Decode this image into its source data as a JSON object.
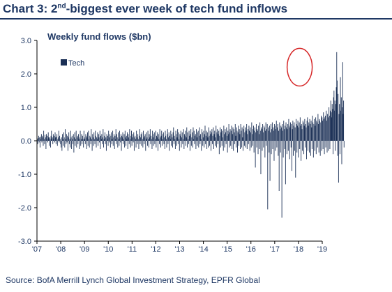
{
  "header": {
    "title_prefix": "Chart 3: 2",
    "title_sup": "nd",
    "title_suffix": "-biggest ever week of tech fund inflows"
  },
  "source": "Source:  BofA Merrill Lynch Global Investment Strategy, EPFR Global",
  "colors": {
    "bar": "#1a2f55",
    "highlight": "#d62728",
    "text": "#1f3864",
    "title": "#1f3864",
    "axis": "#000000"
  },
  "chart_data": {
    "type": "bar",
    "subtitle": "Weekly fund flows ($bn)",
    "ylabel": "",
    "xlabel": "",
    "ylim": [
      -3.0,
      3.0
    ],
    "yticks": [
      "3.0",
      "2.0",
      "1.0",
      "0.0",
      "-1.0",
      "-2.0",
      "-3.0"
    ],
    "ytick_values": [
      3,
      2,
      1,
      0,
      -1,
      -2,
      -3
    ],
    "xticks": [
      "'07",
      "'08",
      "'09",
      "'10",
      "'11",
      "'12",
      "'13",
      "'14",
      "'15",
      "'16",
      "'17",
      "'18",
      "'19"
    ],
    "xtick_years": [
      2007,
      2008,
      2009,
      2010,
      2011,
      2012,
      2013,
      2014,
      2015,
      2016,
      2017,
      2018,
      2019
    ],
    "x_range_years": [
      2007,
      2019
    ],
    "grid": false,
    "legend": {
      "placement": "top-left"
    },
    "series": [
      {
        "name": "Tech",
        "weeks_per_year": 52,
        "start_year": 2007,
        "values": [
          0.05,
          -0.1,
          0.08,
          0.15,
          -0.05,
          0.1,
          -0.2,
          0.12,
          0.05,
          0.2,
          -0.05,
          0.15,
          0.1,
          -0.15,
          0.3,
          0.05,
          -0.1,
          0.18,
          0.1,
          -0.25,
          0.2,
          0.05,
          0.15,
          -0.05,
          0.25,
          0.1,
          -0.15,
          0.1,
          0.05,
          -0.2,
          0.15,
          0.3,
          0.05,
          0.1,
          -0.1,
          0.2,
          0.05,
          0.15,
          -0.05,
          0.25,
          0.1,
          -0.1,
          0.12,
          0.2,
          -0.15,
          0.05,
          0.1,
          0.3,
          -0.05,
          0.15,
          0.05,
          -0.1,
          -0.2,
          0.1,
          -0.3,
          0.2,
          0.05,
          -0.15,
          0.25,
          0.1,
          -0.2,
          0.35,
          0.05,
          -0.1,
          0.2,
          -0.05,
          0.15,
          -0.3,
          0.1,
          0.25,
          -0.1,
          0.05,
          -0.2,
          0.3,
          0.1,
          -0.25,
          0.15,
          0.05,
          -0.1,
          0.2,
          -0.35,
          0.1,
          0.25,
          -0.15,
          0.05,
          0.3,
          -0.2,
          0.1,
          0.15,
          -0.1,
          0.2,
          0.05,
          -0.25,
          0.1,
          0.3,
          -0.15,
          0.05,
          0.2,
          -0.1,
          0.15,
          0.05,
          -0.2,
          0.3,
          0.1,
          0.05,
          -0.1,
          0.2,
          0.15,
          -0.25,
          0.1,
          0.25,
          -0.15,
          0.3,
          0.05,
          -0.2,
          0.15,
          0.1,
          -0.1,
          0.35,
          0.05,
          -0.3,
          0.2,
          0.1,
          -0.15,
          0.25,
          0.05,
          -0.1,
          0.3,
          0.15,
          -0.2,
          0.1,
          0.05,
          0.25,
          -0.15,
          0.2,
          0.1,
          -0.05,
          0.3,
          -0.25,
          0.15,
          0.05,
          0.2,
          -0.1,
          0.1,
          0.35,
          -0.2,
          0.05,
          0.15,
          0.25,
          -0.1,
          0.1,
          -0.3,
          0.2,
          0.05,
          0.15,
          -0.15,
          0.3,
          0.1,
          -0.05,
          0.2,
          -0.2,
          0.15,
          0.25,
          -0.1,
          0.05,
          0.3,
          -0.15,
          0.1,
          0.2,
          -0.25,
          0.15,
          0.05,
          0.35,
          -0.1,
          0.2,
          0.1,
          -0.2,
          0.25,
          0.05,
          -0.15,
          0.3,
          0.1,
          -0.05,
          0.2,
          -0.3,
          0.15,
          0.1,
          0.25,
          -0.1,
          0.05,
          0.2,
          -0.2,
          0.3,
          0.1,
          -0.15,
          0.15,
          0.05,
          0.25,
          -0.25,
          0.2,
          0.1,
          -0.1,
          0.35,
          0.05,
          -0.2,
          0.15,
          0.3,
          -0.15,
          0.1,
          0.2,
          -0.05,
          0.25,
          -0.3,
          0.1,
          0.15,
          0.05,
          -0.2,
          0.3,
          0.1,
          -0.1,
          0.2,
          0.05,
          -0.25,
          0.15,
          0.35,
          -0.1,
          0.1,
          0.2,
          -0.15,
          0.25,
          0.05,
          -0.2,
          0.3,
          0.1,
          -0.1,
          0.15,
          0.2,
          -0.3,
          0.05,
          0.25,
          0.1,
          -0.15,
          0.3,
          0.05,
          -0.2,
          0.2,
          0.1,
          0.35,
          -0.1,
          0.15,
          0.05,
          -0.25,
          0.3,
          0.1,
          -0.15,
          0.2,
          0.25,
          -0.1,
          0.05,
          0.3,
          -0.2,
          0.15,
          0.1,
          0.25,
          -0.3,
          0.2,
          0.05,
          -0.1,
          0.35,
          0.1,
          -0.2,
          0.15,
          0.3,
          -0.15,
          0.05,
          0.2,
          0.25,
          -0.1,
          0.1,
          -0.25,
          0.3,
          0.15,
          0.05,
          -0.2,
          0.2,
          0.35,
          -0.1,
          0.1,
          0.25,
          -0.3,
          0.15,
          0.05,
          0.3,
          -0.15,
          0.2,
          0.1,
          -0.2,
          0.25,
          0.4,
          -0.1,
          0.15,
          0.05,
          -0.25,
          0.3,
          0.2,
          -0.15,
          0.1,
          0.35,
          -0.1,
          0.25,
          0.05,
          -0.3,
          0.2,
          0.15,
          0.3,
          -0.2,
          0.1,
          0.25,
          -0.1,
          0.05,
          0.35,
          -0.25,
          0.2,
          0.15,
          0.3,
          -0.15,
          0.1,
          0.4,
          -0.2,
          0.25,
          0.05,
          -0.1,
          0.3,
          0.15,
          -0.3,
          0.2,
          0.35,
          -0.15,
          0.1,
          0.25,
          -0.2,
          0.4,
          0.05,
          0.3,
          -0.1,
          0.15,
          0.2,
          -0.25,
          0.35,
          0.1,
          -0.15,
          0.25,
          0.3,
          -0.2,
          0.15,
          0.4,
          -0.1,
          0.2,
          0.05,
          -0.3,
          0.35,
          0.25,
          -0.15,
          0.1,
          0.3,
          -0.2,
          0.2,
          0.45,
          -0.1,
          0.15,
          0.3,
          -0.25,
          0.25,
          0.1,
          -0.2,
          0.4,
          0.15,
          -0.15,
          0.3,
          0.2,
          -0.3,
          0.25,
          0.35,
          -0.1,
          0.15,
          0.4,
          -0.25,
          0.2,
          0.3,
          -0.15,
          0.1,
          0.45,
          -0.2,
          0.25,
          0.35,
          -0.1,
          0.2,
          0.3,
          -0.4,
          0.15,
          0.4,
          -0.2,
          0.25,
          0.35,
          -0.15,
          0.3,
          0.1,
          -0.3,
          0.45,
          0.2,
          -0.2,
          0.35,
          0.25,
          -0.1,
          0.4,
          0.15,
          -0.35,
          0.3,
          0.2,
          0.5,
          -0.2,
          0.25,
          0.35,
          -0.15,
          0.3,
          0.45,
          -0.25,
          0.2,
          0.4,
          -0.3,
          0.35,
          0.25,
          -0.1,
          0.5,
          0.15,
          -0.2,
          0.4,
          0.3,
          -0.35,
          0.25,
          0.45,
          -0.15,
          0.35,
          0.2,
          -0.25,
          0.5,
          0.3,
          -0.2,
          0.4,
          0.1,
          -0.3,
          0.35,
          0.45,
          -0.15,
          0.25,
          0.4,
          -0.2,
          0.3,
          0.5,
          -0.25,
          0.2,
          0.35,
          -0.1,
          0.45,
          0.3,
          -0.3,
          0.4,
          0.25,
          -0.2,
          0.55,
          0.2,
          -0.15,
          0.35,
          0.45,
          -0.35,
          0.3,
          0.4,
          -0.8,
          0.25,
          0.5,
          -0.2,
          0.35,
          0.3,
          -0.4,
          0.45,
          0.2,
          -0.25,
          0.55,
          0.3,
          -1.0,
          0.4,
          0.35,
          -0.3,
          0.5,
          0.25,
          -0.2,
          0.45,
          0.4,
          -0.5,
          0.3,
          0.55,
          -0.15,
          0.35,
          0.5,
          -2.05,
          0.4,
          0.3,
          -0.35,
          0.45,
          -1.2,
          0.25,
          0.5,
          -0.4,
          0.35,
          0.55,
          -0.25,
          0.4,
          0.3,
          -0.6,
          0.5,
          0.45,
          -0.3,
          0.35,
          0.6,
          -0.2,
          0.4,
          0.5,
          -0.45,
          0.3,
          -1.5,
          0.55,
          0.35,
          -0.35,
          0.45,
          0.4,
          -2.3,
          0.5,
          0.3,
          -0.5,
          0.6,
          0.35,
          -0.25,
          0.45,
          -1.3,
          0.55,
          0.4,
          -0.4,
          0.35,
          0.5,
          -0.3,
          0.65,
          0.45,
          -0.55,
          0.4,
          0.55,
          -0.2,
          0.5,
          -0.9,
          0.35,
          0.6,
          -0.45,
          0.45,
          0.55,
          -0.3,
          0.4,
          -1.1,
          0.65,
          0.5,
          -0.35,
          0.45,
          0.6,
          -0.5,
          0.4,
          0.55,
          -0.25,
          0.7,
          0.45,
          -0.6,
          0.5,
          0.35,
          -0.3,
          0.6,
          0.55,
          -0.4,
          0.45,
          0.65,
          -0.2,
          0.5,
          0.4,
          -0.55,
          0.6,
          0.7,
          -0.3,
          0.45,
          0.55,
          -0.35,
          0.65,
          0.5,
          -0.45,
          0.6,
          0.4,
          -0.25,
          0.75,
          0.55,
          -0.5,
          0.5,
          0.65,
          -0.3,
          0.45,
          0.7,
          -0.4,
          0.6,
          0.55,
          -0.2,
          0.8,
          0.5,
          -0.35,
          0.65,
          0.6,
          -0.45,
          0.55,
          0.75,
          -0.3,
          0.7,
          0.6,
          -0.25,
          0.85,
          0.65,
          -0.4,
          0.7,
          0.75,
          -0.2,
          0.9,
          0.6,
          -0.35,
          0.8,
          0.7,
          -0.3,
          1.0,
          0.75,
          -0.25,
          0.9,
          1.2,
          0.85,
          0.7,
          1.1,
          0.95,
          -0.4,
          1.3,
          1.5,
          0.9,
          1.2,
          -0.3,
          1.1,
          1.6,
          2.65,
          1.8,
          -0.45,
          1.4,
          -1.25,
          0.8,
          1.1,
          -0.4,
          1.9,
          0.9,
          1.3,
          -0.7,
          1.0,
          2.35,
          0.8,
          1.2,
          -0.2
        ]
      }
    ],
    "annotations": [
      {
        "type": "circle-highlight",
        "around": "2018 peak",
        "x_year": 2018.05,
        "y_value": 2.2
      }
    ]
  }
}
